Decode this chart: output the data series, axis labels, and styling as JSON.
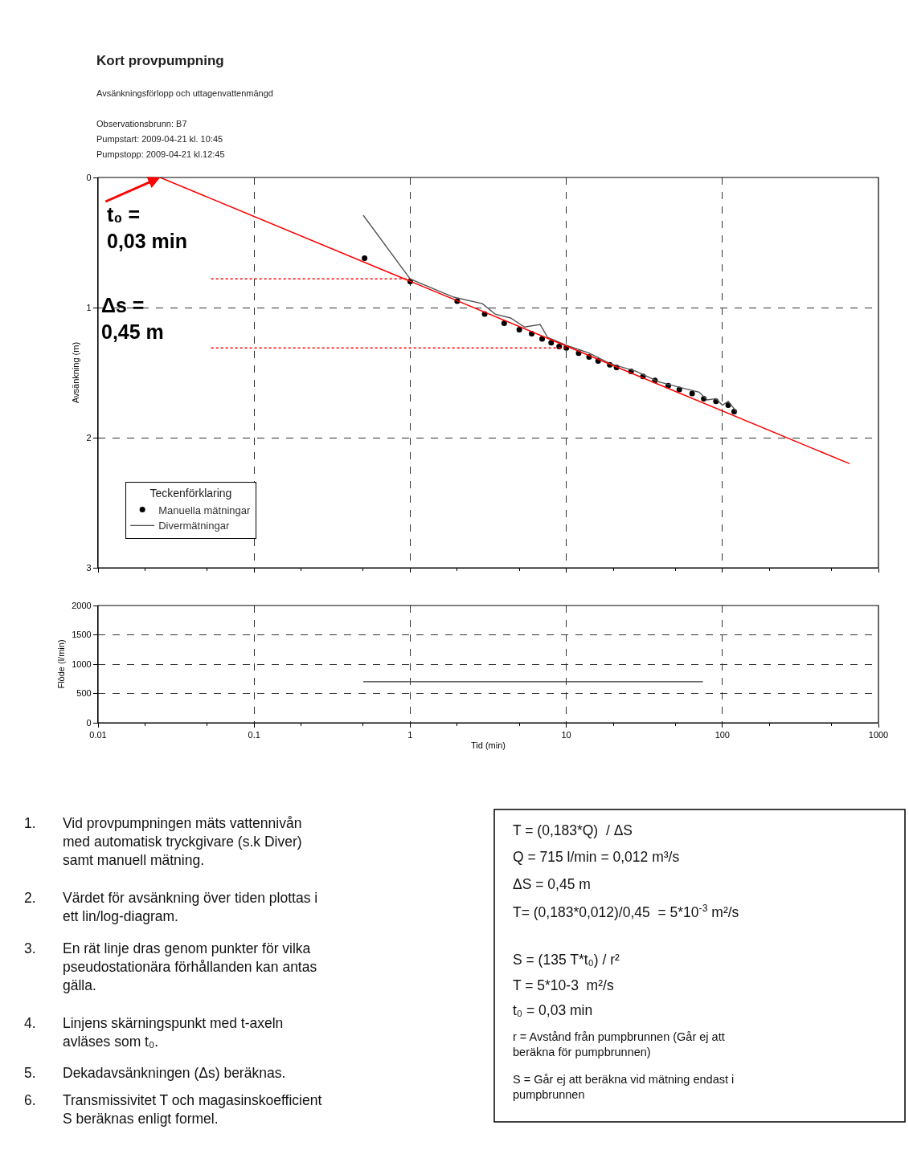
{
  "chart_data": [
    {
      "type": "scatter",
      "title": "Kort provpumpning",
      "subtitle": "Avsänkningsförlopp och uttagenvattenmängd",
      "ylabel": "Avsänkning (m)",
      "legend_title": "Teckenförklaring",
      "legend": "bottom left",
      "grid": true,
      "tick_labels": "y",
      "log": "x",
      "xlim": [
        0.01,
        1000
      ],
      "xticks": [
        0.01,
        0.1,
        1,
        10,
        100,
        1000
      ],
      "ylim": [
        3,
        0
      ],
      "yticks": [
        0,
        1,
        2,
        3
      ],
      "annotations": [
        "Observationsbrunn: B7",
        "Pumpstart: 2009-04-21 kl. 10:45",
        "Pumpstopp: 2009-04-21 kl.12:45",
        {
          "text": "t₀ =\n0,03 min",
          "x": 0.025,
          "y": 0
        },
        "Δs =\n0,45 m"
      ],
      "series": [
        {
          "type": "scatter",
          "name": "Manuella mätningar",
          "color": "#000000",
          "marker": "circle",
          "x": [
            0.51,
            1,
            2,
            3,
            4,
            5,
            6,
            7,
            8,
            9,
            10,
            12,
            14,
            16,
            19,
            21,
            26,
            31,
            37,
            45,
            53,
            64,
            76,
            91,
            109,
            119
          ],
          "values": [
            0.62,
            0.8,
            0.95,
            1.05,
            1.12,
            1.17,
            1.2,
            1.24,
            1.27,
            1.3,
            1.31,
            1.35,
            1.38,
            1.41,
            1.44,
            1.46,
            1.49,
            1.53,
            1.56,
            1.6,
            1.63,
            1.66,
            1.7,
            1.72,
            1.75,
            1.8
          ]
        },
        {
          "type": "line",
          "name": "Divermätningar",
          "color": "#555555",
          "marker": "none",
          "line_style": "solid",
          "x": [
            0.5,
            1,
            1.9,
            2.9,
            3.5,
            4.4,
            5.4,
            6.8,
            7.6,
            10,
            14,
            19,
            28,
            39,
            56,
            71,
            80,
            91,
            100,
            109,
            123
          ],
          "values": [
            0.29,
            0.78,
            0.92,
            0.97,
            1.05,
            1.08,
            1.15,
            1.13,
            1.23,
            1.29,
            1.35,
            1.43,
            1.49,
            1.57,
            1.62,
            1.65,
            1.71,
            1.7,
            1.75,
            1.72,
            1.8
          ]
        },
        {
          "type": "line",
          "color": "#ff0000",
          "marker": "none",
          "line_style": "solid",
          "x": [
            0.025,
            652
          ],
          "values": [
            0,
            2.2
          ]
        },
        {
          "type": "line",
          "color": "#ff0000",
          "marker": "none",
          "line_style": "dotted",
          "x": [
            0.053,
            1
          ],
          "values": [
            0.78,
            0.78
          ]
        },
        {
          "type": "line",
          "color": "#ff0000",
          "marker": "none",
          "line_style": "dotted",
          "x": [
            0.053,
            10
          ],
          "values": [
            1.31,
            1.31
          ]
        }
      ]
    },
    {
      "type": "line",
      "xlabel": "Tid (min)",
      "ylabel": "Flöde (l/min)",
      "grid": true,
      "log": "x",
      "xlim": [
        0.01,
        1000
      ],
      "xticks": [
        0.01,
        0.1,
        1,
        10,
        100,
        1000
      ],
      "ylim": [
        0,
        2000
      ],
      "yticks": [
        0,
        500,
        1000,
        1500,
        2000
      ],
      "series": [
        {
          "color": "#333333",
          "x": [
            0.5,
            75
          ],
          "values": [
            700,
            700
          ]
        }
      ]
    },
    {
      "type": "other",
      "annotations": [
        "1.  Vid provpumpningen mäts vattennivån\nmed automatisk tryckgivare (s.k Diver)\nsamt manuell mätning.",
        "2.  Värdet för avsänkning över tiden plottas i\nett lin/log-diagram.",
        "3.  En rät linje dras genom punkter för vilka\npseudostationära förhållanden kan antas\ngälla.",
        "4.  Linjens skärningspunkt med t-axeln\navläses som t₀.",
        "5.  Dekadavsänkningen (Δs) beräknas.",
        "6.  Transmissivitet T och magasinskoefficient\nS beräknas enligt formel.",
        "T = (0,183*Q)  / ΔS",
        "Q = 715 l/min = 0,012 m³/s",
        "ΔS = 0,45 m",
        "T= (0,183*0,012)/0,45  = 5*10$^{-3}$ m²/s",
        "S = (135 T*t₀) / r²",
        "T = 5*10-3  m²/s",
        "t₀ = 0,03 min",
        "r = Avstånd från pumpbrunnen (Går ej att\nberäkna för pumpbrunnen)",
        "S = Går ej att beräkna vid mätning endast i\npumpbrunnen"
      ]
    }
  ]
}
